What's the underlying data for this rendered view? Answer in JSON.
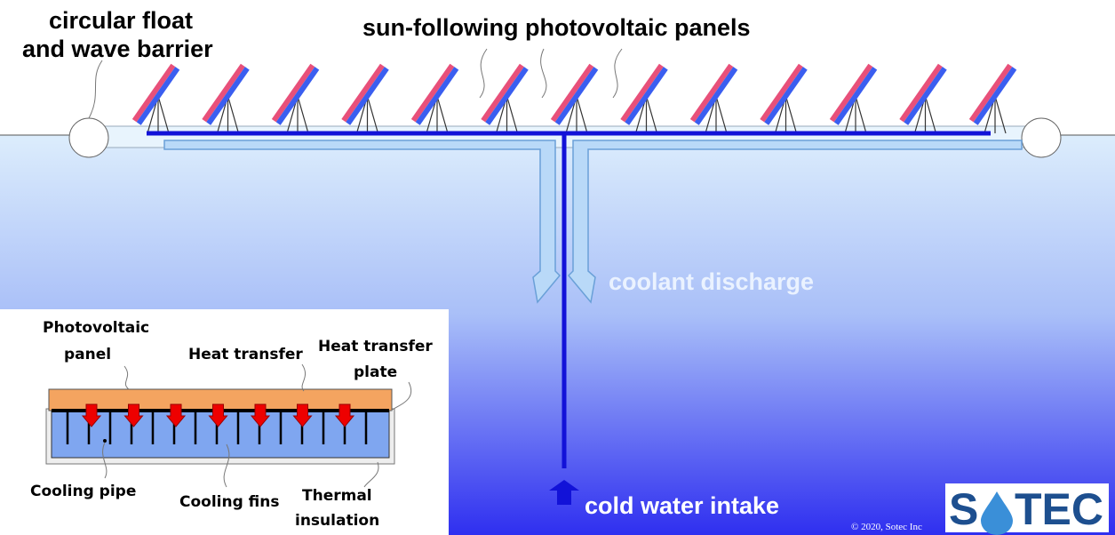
{
  "diagram": {
    "float_label": [
      "circular float",
      "and wave barrier"
    ],
    "panels_label": "sun-following photovoltaic panels",
    "discharge_label": "coolant discharge",
    "intake_label": "cold water intake",
    "copyright": "© 2020, Sotec Inc",
    "logo": {
      "left": "S",
      "right": "TEC"
    },
    "inset": {
      "pv_panel": [
        "Photovoltaic",
        "panel"
      ],
      "heat_transfer": "Heat transfer",
      "heat_plate": [
        "Heat transfer",
        "plate"
      ],
      "cooling_pipe": "Cooling pipe",
      "cooling_fins": "Cooling fins",
      "insulation": [
        "Thermal",
        "insulation"
      ]
    }
  }
}
